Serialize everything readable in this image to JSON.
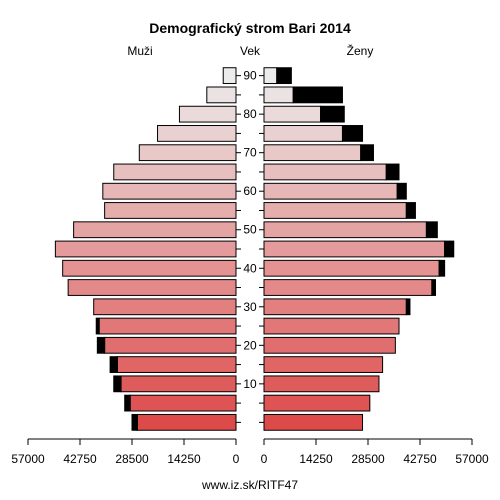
{
  "chart_data": {
    "type": "bar",
    "title": "Demografický strom Bari 2014",
    "left_label": "Muži",
    "center_label": "Vek",
    "right_label": "Ženy",
    "footer": "www.iz.sk/RITF47",
    "xlim": [
      0,
      57000
    ],
    "x_tick_values": [
      57000,
      42750,
      28500,
      14250,
      0
    ],
    "x_tick_labels_left": [
      "57000",
      "42750",
      "28500",
      "14250",
      "0"
    ],
    "x_tick_labels_right": [
      "0",
      "14250",
      "28500",
      "42750",
      "57000"
    ],
    "age_tick_labels": [
      "10",
      "20",
      "30",
      "40",
      "50",
      "60",
      "70",
      "80",
      "90"
    ],
    "age_groups": [
      "0-4",
      "5-9",
      "10-14",
      "15-19",
      "20-24",
      "25-29",
      "30-34",
      "35-39",
      "40-44",
      "45-49",
      "50-54",
      "55-59",
      "60-64",
      "65-69",
      "70-74",
      "75-79",
      "80-84",
      "85-89",
      "90-94"
    ],
    "series": [
      {
        "name": "Muži",
        "values": [
          27000,
          29000,
          31500,
          32500,
          36000,
          37500,
          39000,
          46000,
          47500,
          49500,
          44500,
          36000,
          36500,
          33500,
          26500,
          21500,
          15500,
          8000,
          3500
        ],
        "values_excess": [
          1500,
          1500,
          2000,
          2000,
          2000,
          800,
          0,
          0,
          0,
          0,
          0,
          0,
          0,
          0,
          0,
          0,
          0,
          0,
          0
        ]
      },
      {
        "name": "Ženy",
        "values": [
          27000,
          29000,
          31500,
          32500,
          36000,
          37000,
          39000,
          46000,
          48000,
          49500,
          44500,
          39000,
          36500,
          33500,
          26500,
          21500,
          15500,
          8000,
          3500
        ],
        "values_excess": [
          0,
          0,
          0,
          0,
          0,
          0,
          1000,
          1000,
          1500,
          2500,
          3000,
          2500,
          2500,
          3500,
          3500,
          5500,
          6500,
          13500,
          4000
        ]
      }
    ],
    "colors": {
      "young": "#dd4a4a",
      "old": "#ececec",
      "excess": "#000000",
      "axis": "#000000"
    }
  }
}
